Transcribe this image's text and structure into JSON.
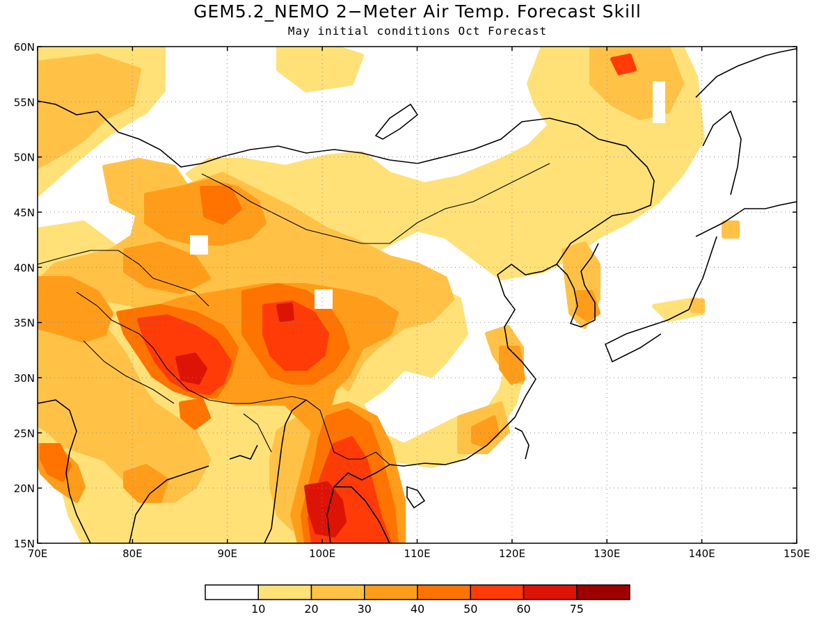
{
  "title": "GEM5.2_NEMO 2−Meter Air Temp. Forecast Skill",
  "subtitle": "May initial conditions  Oct Forecast",
  "map": {
    "lon_range": [
      70,
      150
    ],
    "lat_range": [
      15,
      60
    ],
    "x_ticks": [
      "70E",
      "80E",
      "90E",
      "100E",
      "110E",
      "120E",
      "130E",
      "140E",
      "150E"
    ],
    "y_ticks": [
      "15N",
      "20N",
      "25N",
      "30N",
      "35N",
      "40N",
      "45N",
      "50N",
      "55N",
      "60N"
    ],
    "grid": "dotted"
  },
  "colorbar": {
    "colors": [
      "#ffffff",
      "#ffe178",
      "#ffc247",
      "#ff9d1a",
      "#ff7300",
      "#ff3b08",
      "#dd1405",
      "#9e0000"
    ],
    "labels": [
      "10",
      "20",
      "30",
      "40",
      "50",
      "60",
      "75"
    ]
  }
}
